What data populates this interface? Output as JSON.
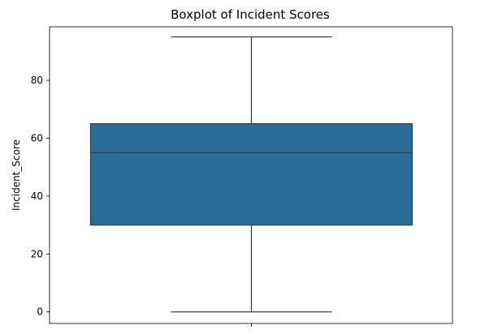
{
  "chart_data": {
    "type": "boxplot",
    "title": "Boxplot of Incident Scores",
    "xlabel": "",
    "ylabel": "Incident_Score",
    "ylim": [
      -4,
      98.5
    ],
    "yticks": [
      0,
      20,
      40,
      60,
      80
    ],
    "grid": false,
    "legend": "none",
    "series": [
      {
        "min": 0,
        "q1": 30,
        "median": 55,
        "q3": 65,
        "max": 95
      }
    ],
    "box_color": "#2a6c99",
    "line_color": "#3d3d3d"
  }
}
